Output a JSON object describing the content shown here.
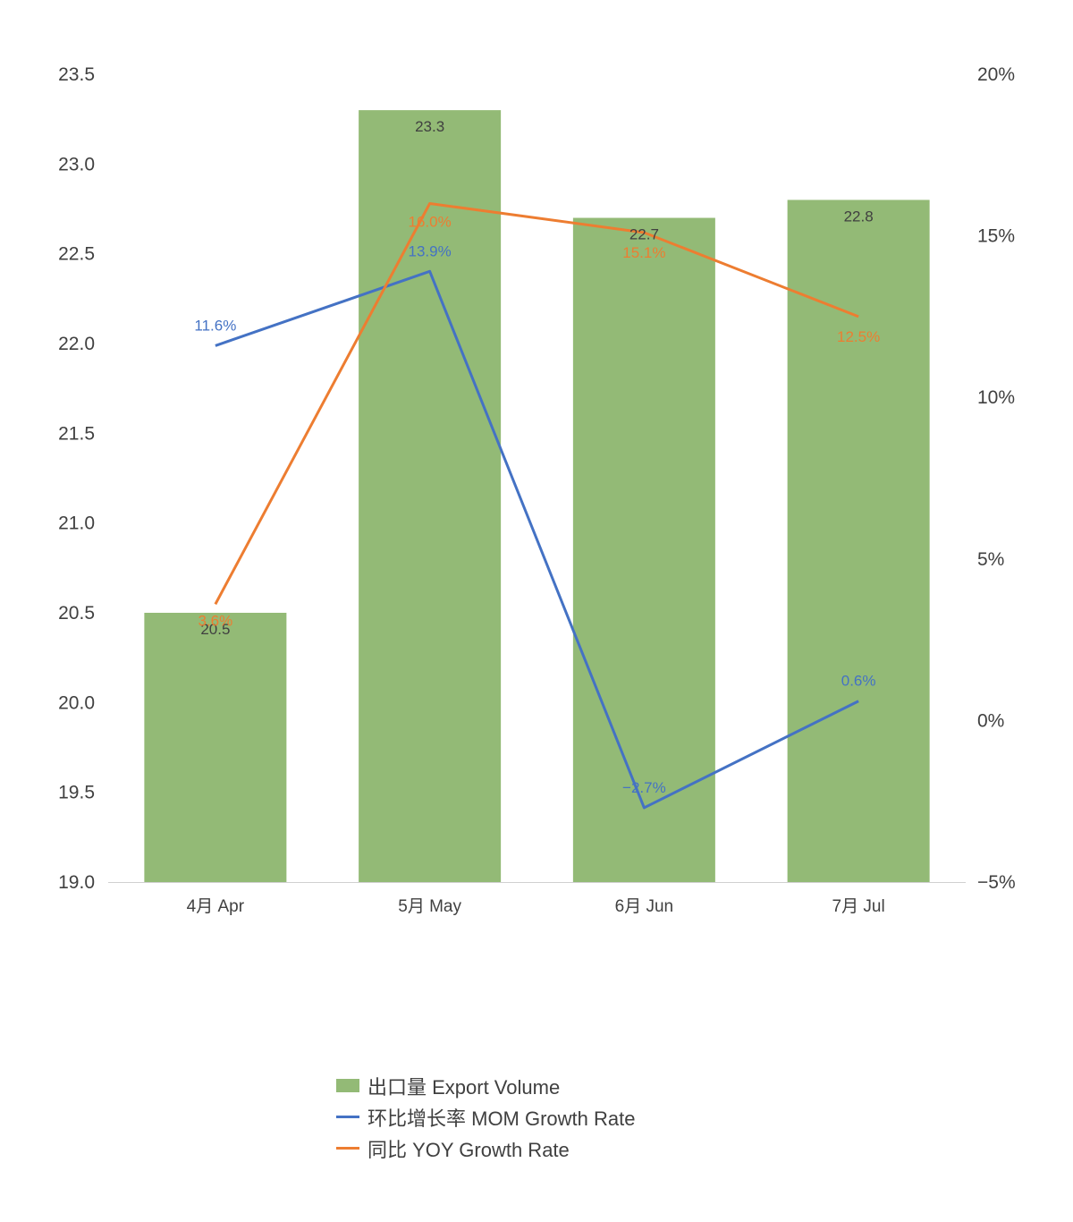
{
  "chart_data": {
    "type": "bar",
    "categories": [
      "4月 Apr",
      "5月 May",
      "6月 Jun",
      "7月 Jul"
    ],
    "bar_series": {
      "name": "出口量 Export Volume",
      "values": [
        20.5,
        23.3,
        22.7,
        22.8
      ],
      "labels": [
        "20.5",
        "23.3",
        "22.7",
        "22.8"
      ],
      "color": "#93ba76"
    },
    "line_series": [
      {
        "name": "环比增长率 MOM Growth Rate",
        "values": [
          11.6,
          13.9,
          -2.7,
          0.6
        ],
        "labels": [
          "11.6%",
          "13.9%",
          "−2.7%",
          "0.6%"
        ],
        "color": "#4472c4"
      },
      {
        "name": "同比 YOY Growth Rate",
        "values": [
          3.6,
          16.0,
          15.1,
          12.5
        ],
        "labels": [
          "3.6%",
          "16.0%",
          "15.1%",
          "12.5%"
        ],
        "color": "#ed7d31"
      }
    ],
    "y_left": {
      "lim": [
        19.0,
        23.5
      ],
      "ticks": [
        19.0,
        19.5,
        20.0,
        20.5,
        21.0,
        21.5,
        22.0,
        22.5,
        23.0,
        23.5
      ],
      "tick_labels": [
        "19.0",
        "19.5",
        "20.0",
        "20.5",
        "21.0",
        "21.5",
        "22.0",
        "22.5",
        "23.0",
        "23.5"
      ]
    },
    "y_right": {
      "lim": [
        -5,
        20
      ],
      "ticks": [
        -5,
        0,
        5,
        10,
        15,
        20
      ],
      "tick_labels": [
        "−5%",
        "0%",
        "5%",
        "10%",
        "15%",
        "20%"
      ]
    },
    "grid": false,
    "legend_position": "bottom"
  }
}
